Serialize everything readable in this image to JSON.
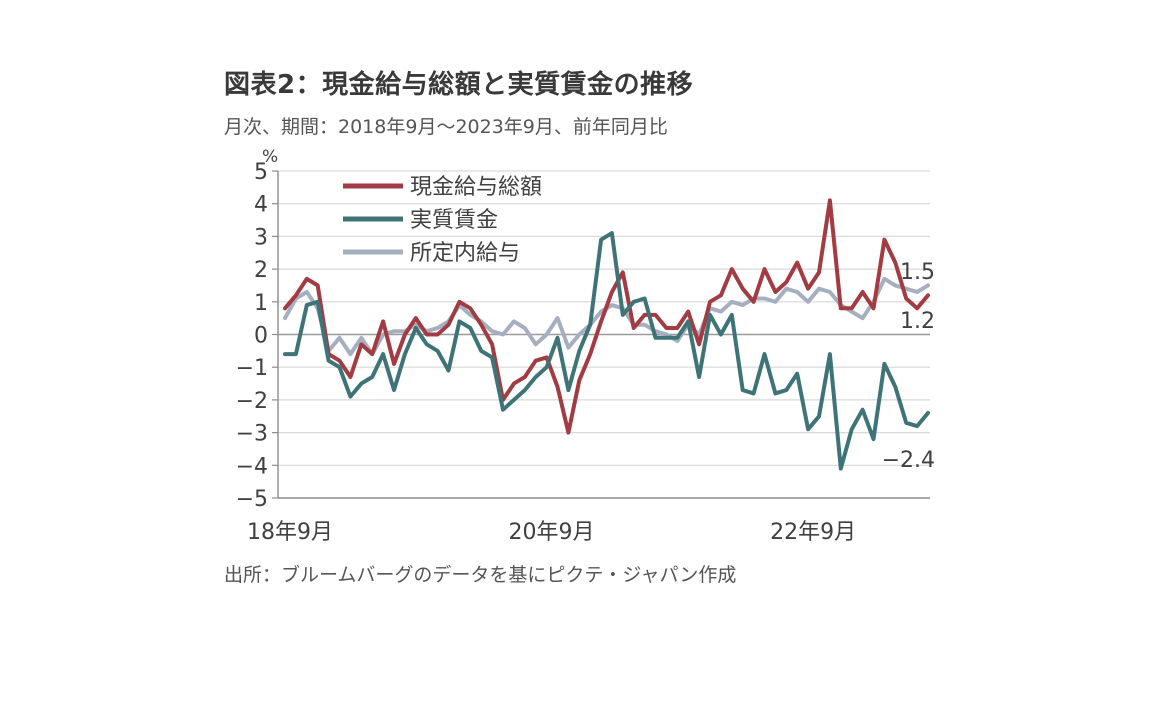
{
  "title": "図表2：現金給与総額と実質賃金の推移",
  "subtitle": "月次、期間：2018年9月～2023年9月、前年同月比",
  "source": "出所：ブルームバーグのデータを基にピクテ・ジャパン作成",
  "chart_data": {
    "type": "line",
    "ylabel": "%",
    "ylim": [
      -5,
      5
    ],
    "yticks": [
      5,
      4,
      3,
      2,
      1,
      0,
      -1,
      -2,
      -3,
      -4,
      -5
    ],
    "xtick_labels": [
      {
        "index": 0,
        "label": "18年9月"
      },
      {
        "index": 24,
        "label": "20年9月"
      },
      {
        "index": 48,
        "label": "22年9月"
      }
    ],
    "grid": true,
    "legend_position": "top-left",
    "series": [
      {
        "name": "現金給与総額",
        "color": "#a33b43",
        "values": [
          0.8,
          1.2,
          1.7,
          1.5,
          -0.6,
          -0.8,
          -1.3,
          -0.3,
          -0.6,
          0.4,
          -0.9,
          0.0,
          0.5,
          0.0,
          0.0,
          0.3,
          1.0,
          0.8,
          0.3,
          -0.3,
          -2.0,
          -1.5,
          -1.3,
          -0.8,
          -0.7,
          -1.6,
          -3.0,
          -1.4,
          -0.6,
          0.4,
          1.3,
          1.9,
          0.2,
          0.6,
          0.6,
          0.2,
          0.2,
          0.7,
          -0.3,
          1.0,
          1.2,
          2.0,
          1.4,
          1.0,
          2.0,
          1.3,
          1.6,
          2.2,
          1.4,
          1.9,
          4.1,
          0.8,
          0.8,
          1.3,
          0.8,
          2.9,
          2.2,
          1.1,
          0.8,
          1.2
        ],
        "end_label": "1.2"
      },
      {
        "name": "実質賃金",
        "color": "#3e7478",
        "values": [
          -0.6,
          -0.6,
          0.9,
          1.0,
          -0.8,
          -1.0,
          -1.9,
          -1.5,
          -1.3,
          -0.6,
          -1.7,
          -0.6,
          0.2,
          -0.3,
          -0.5,
          -1.1,
          0.4,
          0.2,
          -0.5,
          -0.7,
          -2.3,
          -2.0,
          -1.7,
          -1.3,
          -1.0,
          -0.1,
          -1.7,
          -0.5,
          0.3,
          2.9,
          3.1,
          0.6,
          1.0,
          1.1,
          -0.1,
          -0.1,
          -0.1,
          0.4,
          -1.3,
          0.6,
          0.0,
          0.6,
          -1.7,
          -1.8,
          -0.6,
          -1.8,
          -1.7,
          -1.2,
          -2.9,
          -2.5,
          -0.6,
          -4.1,
          -2.9,
          -2.3,
          -3.2,
          -0.9,
          -1.6,
          -2.7,
          -2.8,
          -2.4
        ],
        "end_label": "-2.4"
      },
      {
        "name": "所定内給与",
        "color": "#a6afc0",
        "values": [
          0.5,
          1.1,
          1.3,
          0.8,
          -0.5,
          -0.1,
          -0.6,
          -0.1,
          -0.6,
          0.0,
          0.1,
          0.1,
          0.3,
          0.1,
          0.2,
          0.4,
          0.9,
          0.6,
          0.4,
          0.1,
          0.0,
          0.4,
          0.2,
          -0.3,
          0.0,
          0.5,
          -0.4,
          0.0,
          0.3,
          0.7,
          0.9,
          0.8,
          0.3,
          0.3,
          0.1,
          0.0,
          -0.2,
          0.3,
          0.0,
          0.8,
          0.7,
          1.0,
          0.9,
          1.1,
          1.1,
          1.0,
          1.4,
          1.3,
          1.0,
          1.4,
          1.3,
          0.9,
          0.7,
          0.5,
          1.0,
          1.7,
          1.5,
          1.4,
          1.3,
          1.5
        ],
        "end_label": "1.5"
      }
    ]
  }
}
